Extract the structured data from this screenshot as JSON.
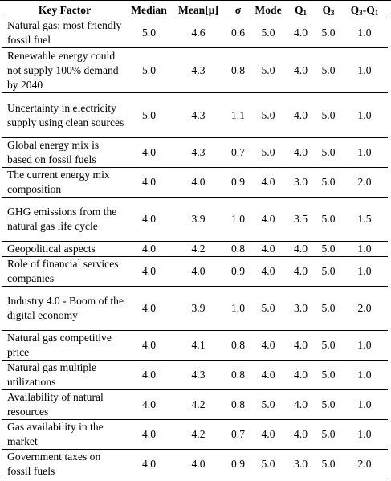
{
  "table": {
    "headers": [
      "Key Factor",
      "Median",
      "Mean[μ]",
      "σ",
      "Mode",
      "Q1",
      "Q3",
      "Q3-Q1"
    ],
    "rows": [
      {
        "factor": "Natural gas: most friendly fossil fuel",
        "median": "5.0",
        "mean": "4.6",
        "sigma": "0.6",
        "mode": "5.0",
        "q1": "4.0",
        "q3": "5.0",
        "iqr": "1.0"
      },
      {
        "factor": "Renewable energy could not supply 100% demand by 2040",
        "median": "5.0",
        "mean": "4.3",
        "sigma": "0.8",
        "mode": "5.0",
        "q1": "4.0",
        "q3": "5.0",
        "iqr": "1.0"
      },
      {
        "factor": "Uncertainty in electricity supply using clean sources",
        "median": "5.0",
        "mean": "4.3",
        "sigma": "1.1",
        "mode": "5.0",
        "q1": "4.0",
        "q3": "5.0",
        "iqr": "1.0"
      },
      {
        "factor": "Global energy mix is based on fossil fuels",
        "median": "4.0",
        "mean": "4.3",
        "sigma": "0.7",
        "mode": "5.0",
        "q1": "4.0",
        "q3": "5.0",
        "iqr": "1.0"
      },
      {
        "factor": "The current energy mix composition",
        "median": "4.0",
        "mean": "4.0",
        "sigma": "0.9",
        "mode": "4.0",
        "q1": "3.0",
        "q3": "5.0",
        "iqr": "2.0"
      },
      {
        "factor": "GHG emissions from the natural gas life cycle",
        "median": "4.0",
        "mean": "3.9",
        "sigma": "1.0",
        "mode": "4.0",
        "q1": "3.5",
        "q3": "5.0",
        "iqr": "1.5"
      },
      {
        "factor": "Geopolitical aspects",
        "median": "4.0",
        "mean": "4.2",
        "sigma": "0.8",
        "mode": "4.0",
        "q1": "4.0",
        "q3": "5.0",
        "iqr": "1.0"
      },
      {
        "factor": "Role of financial services companies",
        "median": "4.0",
        "mean": "4.0",
        "sigma": "0.9",
        "mode": "4.0",
        "q1": "4.0",
        "q3": "5.0",
        "iqr": "1.0"
      },
      {
        "factor": "Industry 4.0 - Boom of the digital economy",
        "median": "4.0",
        "mean": "3.9",
        "sigma": "1.0",
        "mode": "5.0",
        "q1": "3.0",
        "q3": "5.0",
        "iqr": "2.0"
      },
      {
        "factor": "Natural gas competitive price",
        "median": "4.0",
        "mean": "4.1",
        "sigma": "0.8",
        "mode": "4.0",
        "q1": "4.0",
        "q3": "5.0",
        "iqr": "1.0"
      },
      {
        "factor": "Natural gas multiple utilizations",
        "median": "4.0",
        "mean": "4.3",
        "sigma": "0.8",
        "mode": "4.0",
        "q1": "4.0",
        "q3": "5.0",
        "iqr": "1.0"
      },
      {
        "factor": "Availability of natural resources",
        "median": "4.0",
        "mean": "4.2",
        "sigma": "0.8",
        "mode": "5.0",
        "q1": "4.0",
        "q3": "5.0",
        "iqr": "1.0"
      },
      {
        "factor": "Gas availability in the market",
        "median": "4.0",
        "mean": "4.2",
        "sigma": "0.7",
        "mode": "4.0",
        "q1": "4.0",
        "q3": "5.0",
        "iqr": "1.0"
      },
      {
        "factor": "Government taxes on fossil fuels",
        "median": "4.0",
        "mean": "4.0",
        "sigma": "0.9",
        "mode": "5.0",
        "q1": "3.0",
        "q3": "5.0",
        "iqr": "2.0"
      }
    ]
  }
}
